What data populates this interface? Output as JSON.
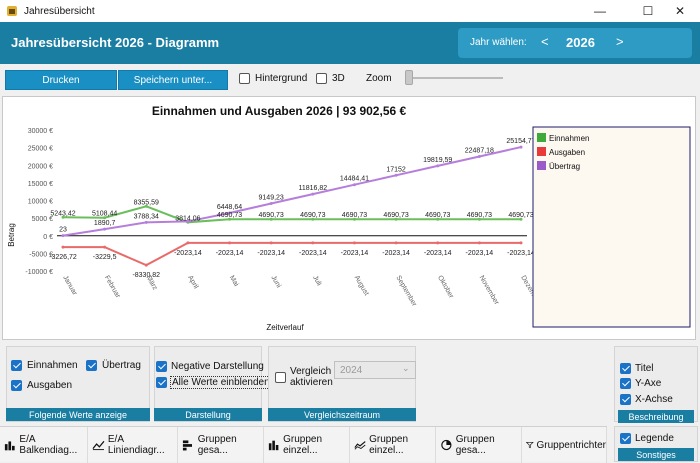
{
  "window": {
    "title": "Jahresübersicht"
  },
  "header": {
    "title": "Jahresübersicht 2026 - Diagramm",
    "year_label": "Jahr wählen:",
    "prev": "<",
    "next": ">",
    "year": "2026"
  },
  "toolbar": {
    "print_label": "Drucken",
    "save_label": "Speichern unter...",
    "background_label": "Hintergrund",
    "background_checked": false,
    "threed_label": "3D",
    "threed_checked": false,
    "zoom_label": "Zoom"
  },
  "chart_data": {
    "type": "line",
    "title": "Einnahmen und Ausgaben 2026 | 93 902,56 €",
    "xlabel": "Zeitverlauf",
    "ylabel": "Betrag",
    "ylim": [
      -10000,
      30000
    ],
    "yticks": [
      "30000 €",
      "25000 €",
      "20000 €",
      "15000 €",
      "10000 €",
      "5000 €",
      "0 €",
      "-5000 €",
      "-10000 €"
    ],
    "ytick_values": [
      30000,
      25000,
      20000,
      15000,
      10000,
      5000,
      0,
      -5000,
      -10000
    ],
    "categories": [
      "Januar",
      "Februar",
      "März",
      "April",
      "Mai",
      "Juni",
      "Juli",
      "August",
      "September",
      "Oktober",
      "November",
      "Dezember"
    ],
    "legend_position": "right",
    "series": [
      {
        "name": "Einnahmen",
        "color": "#3daa3a",
        "line_color": "#6abf5c",
        "values": [
          5243.42,
          5108.44,
          8355.59,
          3814.06,
          4690.73,
          4690.73,
          4690.73,
          4690.73,
          4690.73,
          4690.73,
          4690.73,
          4690.73
        ],
        "labels": [
          "5243,42",
          "5108,44",
          "8355,59",
          "3814,06",
          "4690,73",
          "4690,73",
          "4690,73",
          "4690,73",
          "4690,73",
          "4690,73",
          "4690,73",
          "4690,73"
        ]
      },
      {
        "name": "Ausgaben",
        "color": "#e83a3a",
        "line_color": "#e86a6a",
        "values": [
          -3226.72,
          -3229.5,
          -8330.82,
          -2023.14,
          -2023.14,
          -2023.14,
          -2023.14,
          -2023.14,
          -2023.14,
          -2023.14,
          -2023.14,
          -2023.14
        ],
        "labels": [
          "-3226,72",
          "-3229,5",
          "-8330,82",
          "-2023,14",
          "-2023,14",
          "-2023,14",
          "-2023,14",
          "-2023,14",
          "-2023,14",
          "-2023,14",
          "-2023,14",
          "-2023,14"
        ]
      },
      {
        "name": "Übertrag",
        "color": "#9b59c9",
        "line_color": "#b57edc",
        "values": [
          23,
          1890.7,
          3788.34,
          4064.25,
          6448.64,
          9149.23,
          11816.82,
          14484.41,
          17152,
          19819.59,
          22487.18,
          25154.77
        ],
        "labels": [
          "23",
          "1890,7",
          "3788,34",
          "",
          "6448,64",
          "9149,23",
          "11816,82",
          "14484,41",
          "17152",
          "19819,59",
          "22487,18",
          "25154,77"
        ]
      }
    ]
  },
  "werte": {
    "einnahmen": "Einnahmen",
    "uebertrag": "Übertrag",
    "ausgaben": "Ausgaben",
    "footer": "Folgende Werte anzeige"
  },
  "darstellung": {
    "negative": "Negative Darstellung",
    "alle": "Alle Werte einblenden",
    "footer": "Darstellung"
  },
  "vergleich": {
    "label_line1": "Vergleich",
    "label_line2": "aktivieren",
    "year": "2024",
    "footer": "Vergleichszeitraum"
  },
  "beschreibung": {
    "titel": "Titel",
    "yaxe": "Y-Axe",
    "xachse": "X-Achse",
    "footer": "Beschreibung"
  },
  "sonstiges": {
    "legende": "Legende",
    "footer": "Sonstiges"
  },
  "tabs": [
    {
      "label": "E/A Balkendiag...",
      "icon": "bar-chart-icon"
    },
    {
      "label": "E/A Liniendiagr...",
      "icon": "line-chart-icon"
    },
    {
      "label": "Gruppen gesa...",
      "icon": "horizontal-bar-icon"
    },
    {
      "label": "Gruppen einzel...",
      "icon": "bar-chart-icon"
    },
    {
      "label": "Gruppen einzel...",
      "icon": "line-chart-icon"
    },
    {
      "label": "Gruppen gesa...",
      "icon": "pie-chart-icon"
    },
    {
      "label": "Gruppentrichter",
      "icon": "funnel-icon"
    }
  ]
}
